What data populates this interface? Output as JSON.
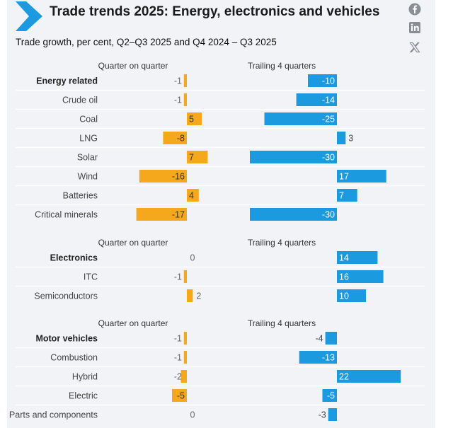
{
  "title": "Trade trends 2025: Energy, electronics and vehicles",
  "subtitle": "Trade growth, per cent, Q2–Q3 2025 and Q4 2024 – Q3 2025",
  "social": [
    "facebook-icon",
    "linkedin-icon",
    "x-icon"
  ],
  "chart_data": {
    "type": "bar",
    "orientation": "horizontal",
    "unit": "per cent",
    "series_names": [
      "Quarter on quarter",
      "Trailing 4 quarters"
    ],
    "colors": {
      "Quarter on quarter": "#f5a81c",
      "Trailing 4 quarters": "#1b9ae0"
    },
    "groups": [
      {
        "name": "Energy related",
        "categories": [
          "Energy related",
          "Crude oil",
          "Coal",
          "LNG",
          "Solar",
          "Wind",
          "Batteries",
          "Critical minerals"
        ],
        "quarter_on_quarter": [
          -1,
          -1,
          5,
          -8,
          7,
          -16,
          4,
          -17
        ],
        "trailing_4_quarters": [
          -10,
          -14,
          -25,
          3,
          -30,
          17,
          7,
          -30
        ]
      },
      {
        "name": "Electronics",
        "categories": [
          "Electronics",
          "ITC",
          "Semiconductors"
        ],
        "quarter_on_quarter": [
          0,
          -1,
          2
        ],
        "trailing_4_quarters": [
          14,
          16,
          10
        ]
      },
      {
        "name": "Motor vehicles",
        "categories": [
          "Motor vehicles",
          "Combustion",
          "Hybrid",
          "Electric",
          "Parts and components"
        ],
        "quarter_on_quarter": [
          -1,
          -1,
          -2,
          -5,
          0
        ],
        "trailing_4_quarters": [
          -4,
          -13,
          22,
          -5,
          -3
        ]
      }
    ]
  }
}
